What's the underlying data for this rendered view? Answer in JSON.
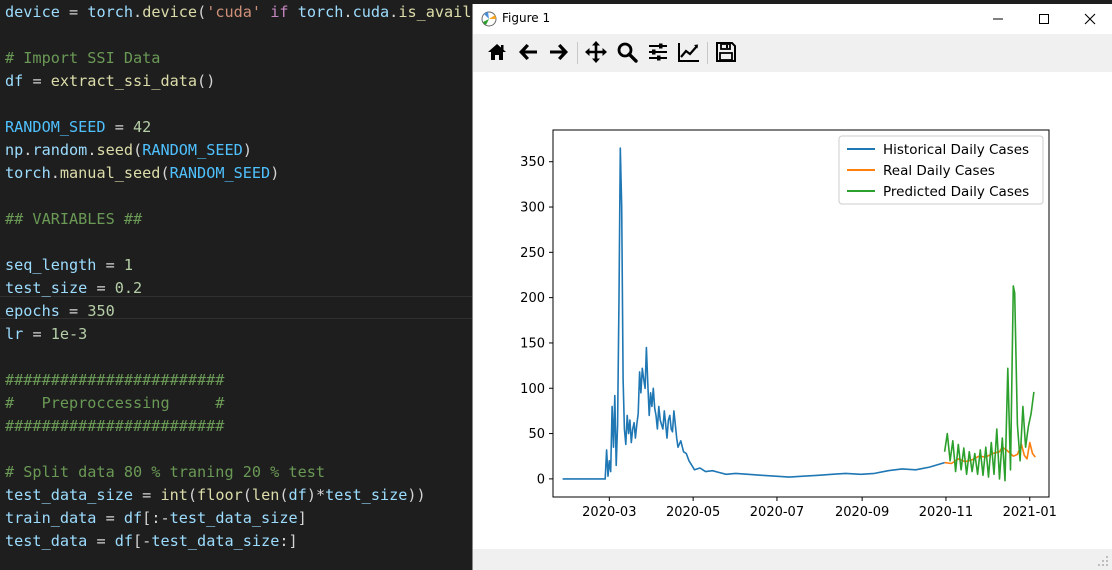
{
  "editor": {
    "lines": [
      [
        [
          "var",
          "device"
        ],
        [
          "op",
          " = "
        ],
        [
          "var",
          "torch"
        ],
        [
          "op",
          "."
        ],
        [
          "fn",
          "device"
        ],
        [
          "op",
          "("
        ],
        [
          "str",
          "'cuda'"
        ],
        [
          "op",
          " "
        ],
        [
          "kw",
          "if"
        ],
        [
          "op",
          " "
        ],
        [
          "var",
          "torch"
        ],
        [
          "op",
          "."
        ],
        [
          "var",
          "cuda"
        ],
        [
          "op",
          "."
        ],
        [
          "fn",
          "is_avail"
        ]
      ],
      [],
      [
        [
          "cmt",
          "# Import SSI Data"
        ]
      ],
      [
        [
          "var",
          "df"
        ],
        [
          "op",
          " = "
        ],
        [
          "fn",
          "extract_ssi_data"
        ],
        [
          "op",
          "()"
        ]
      ],
      [],
      [
        [
          "const",
          "RANDOM_SEED"
        ],
        [
          "op",
          " = "
        ],
        [
          "num",
          "42"
        ]
      ],
      [
        [
          "var",
          "np"
        ],
        [
          "op",
          "."
        ],
        [
          "var",
          "random"
        ],
        [
          "op",
          "."
        ],
        [
          "fn",
          "seed"
        ],
        [
          "op",
          "("
        ],
        [
          "const",
          "RANDOM_SEED"
        ],
        [
          "op",
          ")"
        ]
      ],
      [
        [
          "var",
          "torch"
        ],
        [
          "op",
          "."
        ],
        [
          "fn",
          "manual_seed"
        ],
        [
          "op",
          "("
        ],
        [
          "const",
          "RANDOM_SEED"
        ],
        [
          "op",
          ")"
        ]
      ],
      [],
      [
        [
          "cmt",
          "## VARIABLES ##"
        ]
      ],
      [],
      [
        [
          "var",
          "seq_length"
        ],
        [
          "op",
          " = "
        ],
        [
          "num",
          "1"
        ]
      ],
      [
        [
          "var",
          "test_size"
        ],
        [
          "op",
          " = "
        ],
        [
          "num",
          "0.2"
        ]
      ],
      [
        [
          "var",
          "epochs"
        ],
        [
          "op",
          " = "
        ],
        [
          "num",
          "350"
        ]
      ],
      [
        [
          "var",
          "lr"
        ],
        [
          "op",
          " = "
        ],
        [
          "num",
          "1e-3"
        ]
      ],
      [],
      [
        [
          "cmt",
          "########################"
        ]
      ],
      [
        [
          "cmt",
          "#   Preproccessing     #"
        ]
      ],
      [
        [
          "cmt",
          "########################"
        ]
      ],
      [],
      [
        [
          "cmt",
          "# Split data 80 % traning 20 % test"
        ]
      ],
      [
        [
          "var",
          "test_data_size"
        ],
        [
          "op",
          " = "
        ],
        [
          "fn",
          "int"
        ],
        [
          "op",
          "("
        ],
        [
          "fn",
          "floor"
        ],
        [
          "op",
          "("
        ],
        [
          "fn",
          "len"
        ],
        [
          "op",
          "("
        ],
        [
          "var",
          "df"
        ],
        [
          "op",
          ")*"
        ],
        [
          "var",
          "test_size"
        ],
        [
          "op",
          "))"
        ]
      ],
      [
        [
          "var",
          "train_data"
        ],
        [
          "op",
          " = "
        ],
        [
          "var",
          "df"
        ],
        [
          "op",
          "[:-"
        ],
        [
          "var",
          "test_data_size"
        ],
        [
          "op",
          "]"
        ]
      ],
      [
        [
          "var",
          "test_data"
        ],
        [
          "op",
          " = "
        ],
        [
          "var",
          "df"
        ],
        [
          "op",
          "[-"
        ],
        [
          "var",
          "test_data_size"
        ],
        [
          "op",
          ":]"
        ]
      ]
    ]
  },
  "figure_window": {
    "title": "Figure 1",
    "controls": [
      "minimize",
      "maximize",
      "close"
    ],
    "toolbar": {
      "tools": [
        "home-icon",
        "back-arrow-icon",
        "forward-arrow-icon",
        "pan-icon",
        "zoom-icon",
        "subplots-icon",
        "edit-axis-icon",
        "save-icon"
      ]
    }
  },
  "colors": {
    "historical": "#1f77b4",
    "real": "#ff7f0e",
    "predicted": "#2ca02c"
  },
  "chart_data": {
    "type": "line",
    "title": "",
    "xlabel": "",
    "ylabel": "",
    "x_ticks": [
      "2020-03",
      "2020-05",
      "2020-07",
      "2020-09",
      "2020-11",
      "2021-01"
    ],
    "y_ticks": [
      0,
      50,
      100,
      150,
      200,
      250,
      300,
      350
    ],
    "xlim": [
      "2020-01-20",
      "2021-01-15"
    ],
    "ylim": [
      -20,
      385
    ],
    "legend_position": "top-right",
    "series": [
      {
        "name": "Historical Daily Cases",
        "color_key": "historical",
        "points": [
          [
            "2020-01-27",
            0
          ],
          [
            "2020-02-27",
            0
          ],
          [
            "2020-02-28",
            32
          ],
          [
            "2020-02-29",
            3
          ],
          [
            "2020-03-01",
            20
          ],
          [
            "2020-03-02",
            8
          ],
          [
            "2020-03-03",
            80
          ],
          [
            "2020-03-04",
            35
          ],
          [
            "2020-03-05",
            92
          ],
          [
            "2020-03-06",
            15
          ],
          [
            "2020-03-07",
            60
          ],
          [
            "2020-03-08",
            200
          ],
          [
            "2020-03-09",
            365
          ],
          [
            "2020-03-10",
            300
          ],
          [
            "2020-03-11",
            110
          ],
          [
            "2020-03-12",
            55
          ],
          [
            "2020-03-13",
            38
          ],
          [
            "2020-03-14",
            70
          ],
          [
            "2020-03-15",
            50
          ],
          [
            "2020-03-16",
            65
          ],
          [
            "2020-03-17",
            40
          ],
          [
            "2020-03-18",
            55
          ],
          [
            "2020-03-19",
            62
          ],
          [
            "2020-03-20",
            45
          ],
          [
            "2020-03-21",
            60
          ],
          [
            "2020-03-22",
            72
          ],
          [
            "2020-03-23",
            118
          ],
          [
            "2020-03-24",
            95
          ],
          [
            "2020-03-25",
            122
          ],
          [
            "2020-03-26",
            110
          ],
          [
            "2020-03-27",
            100
          ],
          [
            "2020-03-28",
            145
          ],
          [
            "2020-03-29",
            105
          ],
          [
            "2020-03-30",
            70
          ],
          [
            "2020-03-31",
            95
          ],
          [
            "2020-04-01",
            80
          ],
          [
            "2020-04-02",
            100
          ],
          [
            "2020-04-03",
            78
          ],
          [
            "2020-04-04",
            70
          ],
          [
            "2020-04-05",
            55
          ],
          [
            "2020-04-06",
            80
          ],
          [
            "2020-04-07",
            65
          ],
          [
            "2020-04-08",
            60
          ],
          [
            "2020-04-09",
            55
          ],
          [
            "2020-04-10",
            75
          ],
          [
            "2020-04-11",
            60
          ],
          [
            "2020-04-12",
            45
          ],
          [
            "2020-04-13",
            65
          ],
          [
            "2020-04-14",
            70
          ],
          [
            "2020-04-15",
            55
          ],
          [
            "2020-04-16",
            52
          ],
          [
            "2020-04-17",
            75
          ],
          [
            "2020-04-18",
            60
          ],
          [
            "2020-04-19",
            45
          ],
          [
            "2020-04-20",
            35
          ],
          [
            "2020-04-22",
            42
          ],
          [
            "2020-04-24",
            30
          ],
          [
            "2020-04-26",
            28
          ],
          [
            "2020-04-28",
            20
          ],
          [
            "2020-04-30",
            15
          ],
          [
            "2020-05-02",
            10
          ],
          [
            "2020-05-06",
            12
          ],
          [
            "2020-05-10",
            8
          ],
          [
            "2020-05-15",
            9
          ],
          [
            "2020-05-20",
            7
          ],
          [
            "2020-05-25",
            5
          ],
          [
            "2020-06-01",
            6
          ],
          [
            "2020-06-10",
            5
          ],
          [
            "2020-06-20",
            4
          ],
          [
            "2020-06-30",
            3
          ],
          [
            "2020-07-10",
            2
          ],
          [
            "2020-07-20",
            3
          ],
          [
            "2020-07-31",
            4
          ],
          [
            "2020-08-10",
            5
          ],
          [
            "2020-08-20",
            6
          ],
          [
            "2020-08-31",
            5
          ],
          [
            "2020-09-10",
            6
          ],
          [
            "2020-09-20",
            9
          ],
          [
            "2020-09-30",
            11
          ],
          [
            "2020-10-10",
            10
          ],
          [
            "2020-10-20",
            13
          ],
          [
            "2020-10-31",
            18
          ]
        ]
      },
      {
        "name": "Real Daily Cases",
        "color_key": "real",
        "points": [
          [
            "2020-10-31",
            18
          ],
          [
            "2020-11-05",
            17
          ],
          [
            "2020-11-10",
            22
          ],
          [
            "2020-11-15",
            19
          ],
          [
            "2020-11-20",
            21
          ],
          [
            "2020-11-25",
            25
          ],
          [
            "2020-11-30",
            24
          ],
          [
            "2020-12-05",
            28
          ],
          [
            "2020-12-10",
            30
          ],
          [
            "2020-12-12",
            35
          ],
          [
            "2020-12-15",
            32
          ],
          [
            "2020-12-18",
            28
          ],
          [
            "2020-12-20",
            25
          ],
          [
            "2020-12-23",
            27
          ],
          [
            "2020-12-26",
            38
          ],
          [
            "2020-12-28",
            26
          ],
          [
            "2020-12-30",
            22
          ],
          [
            "2021-01-01",
            40
          ],
          [
            "2021-01-03",
            28
          ],
          [
            "2021-01-05",
            24
          ]
        ]
      },
      {
        "name": "Predicted Daily Cases",
        "color_key": "predicted",
        "points": [
          [
            "2020-10-31",
            30
          ],
          [
            "2020-11-02",
            50
          ],
          [
            "2020-11-04",
            20
          ],
          [
            "2020-11-06",
            42
          ],
          [
            "2020-11-08",
            8
          ],
          [
            "2020-11-10",
            38
          ],
          [
            "2020-11-12",
            10
          ],
          [
            "2020-11-14",
            34
          ],
          [
            "2020-11-16",
            5
          ],
          [
            "2020-11-18",
            30
          ],
          [
            "2020-11-20",
            8
          ],
          [
            "2020-11-22",
            28
          ],
          [
            "2020-11-24",
            5
          ],
          [
            "2020-11-26",
            32
          ],
          [
            "2020-11-28",
            4
          ],
          [
            "2020-11-30",
            35
          ],
          [
            "2020-12-02",
            2
          ],
          [
            "2020-12-04",
            40
          ],
          [
            "2020-12-06",
            5
          ],
          [
            "2020-12-08",
            55
          ],
          [
            "2020-12-10",
            0
          ],
          [
            "2020-12-12",
            45
          ],
          [
            "2020-12-14",
            -2
          ],
          [
            "2020-12-16",
            122
          ],
          [
            "2020-12-18",
            10
          ],
          [
            "2020-12-20",
            213
          ],
          [
            "2020-12-21",
            205
          ],
          [
            "2020-12-23",
            60
          ],
          [
            "2020-12-25",
            20
          ],
          [
            "2020-12-27",
            80
          ],
          [
            "2020-12-29",
            35
          ],
          [
            "2020-12-31",
            58
          ],
          [
            "2021-01-02",
            72
          ],
          [
            "2021-01-04",
            96
          ]
        ]
      }
    ]
  }
}
